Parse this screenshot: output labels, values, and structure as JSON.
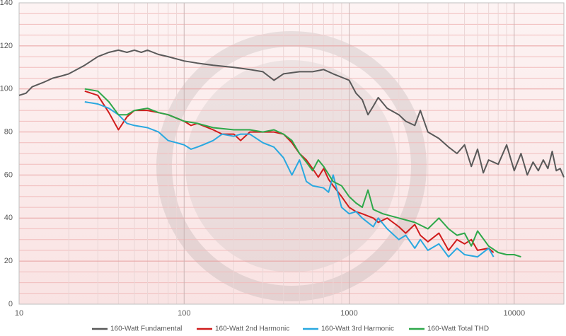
{
  "chart_data": {
    "type": "line",
    "xlim": [
      10,
      20000
    ],
    "xticks": [
      10,
      100,
      1000,
      10000
    ],
    "log_x": true,
    "ylim": [
      0,
      140
    ],
    "yticks": [
      0,
      20,
      40,
      60,
      80,
      100,
      120,
      140
    ],
    "grid": true,
    "legend": "bottom",
    "series": [
      {
        "name": "160-Watt Fundamental",
        "color": "#595959",
        "x": [
          10,
          11,
          12,
          14,
          16,
          18,
          20,
          25,
          30,
          35,
          40,
          45,
          50,
          55,
          60,
          70,
          80,
          100,
          120,
          150,
          200,
          250,
          300,
          350,
          400,
          500,
          600,
          700,
          800,
          1000,
          1100,
          1200,
          1300,
          1400,
          1500,
          1700,
          2000,
          2200,
          2500,
          2700,
          3000,
          3500,
          4000,
          4500,
          5000,
          5500,
          6000,
          6500,
          7000,
          8000,
          9000,
          10000,
          11000,
          12000,
          13000,
          14000,
          15000,
          16000,
          17000,
          18000,
          19000,
          20000
        ],
        "values": [
          97,
          98,
          101,
          103,
          105,
          106,
          107,
          111,
          115,
          117,
          118,
          117,
          118,
          117,
          118,
          116,
          115,
          113,
          112,
          111,
          110,
          109,
          108,
          104,
          107,
          108,
          108,
          109,
          107,
          104,
          98,
          95,
          88,
          92,
          96,
          91,
          88,
          85,
          83,
          90,
          80,
          77,
          73,
          70,
          74,
          64,
          72,
          61,
          67,
          65,
          74,
          62,
          70,
          60,
          66,
          62,
          67,
          63,
          71,
          62,
          63,
          59
        ]
      },
      {
        "name": "160-Watt 2nd Harmonic",
        "color": "#d01c1c",
        "x": [
          25,
          30,
          35,
          40,
          45,
          50,
          60,
          70,
          80,
          100,
          110,
          120,
          150,
          170,
          200,
          220,
          250,
          300,
          350,
          400,
          450,
          500,
          550,
          600,
          650,
          700,
          750,
          800,
          900,
          1000,
          1100,
          1200,
          1400,
          1500,
          1700,
          2000,
          2200,
          2500,
          2700,
          3000,
          3500,
          4000,
          4500,
          5000,
          5500,
          6000,
          7000,
          7500
        ],
        "values": [
          99,
          97,
          89,
          81,
          87,
          90,
          90,
          89,
          88,
          85,
          83,
          84,
          81,
          79,
          79,
          76,
          80,
          80,
          80,
          79,
          75,
          70,
          67,
          63,
          59,
          63,
          58,
          55,
          50,
          45,
          43,
          42,
          40,
          38,
          40,
          36,
          33,
          37,
          32,
          29,
          33,
          25,
          30,
          28,
          30,
          25,
          26,
          24
        ]
      },
      {
        "name": "160-Watt 3rd Harmonic",
        "color": "#29a8e0",
        "x": [
          25,
          30,
          35,
          40,
          45,
          50,
          60,
          70,
          80,
          90,
          100,
          110,
          120,
          130,
          150,
          170,
          200,
          220,
          250,
          300,
          350,
          400,
          450,
          500,
          550,
          600,
          700,
          750,
          800,
          900,
          1000,
          1100,
          1200,
          1400,
          1500,
          1700,
          2000,
          2200,
          2500,
          2700,
          3000,
          3500,
          4000,
          4500,
          5000,
          6000,
          7000,
          7500
        ],
        "values": [
          94,
          93,
          91,
          88,
          84,
          83,
          82,
          80,
          76,
          75,
          74,
          72,
          73,
          74,
          76,
          79,
          78,
          79,
          79,
          75,
          73,
          68,
          60,
          67,
          57,
          55,
          54,
          52,
          60,
          45,
          42,
          43,
          40,
          36,
          40,
          35,
          30,
          32,
          26,
          30,
          25,
          28,
          22,
          26,
          23,
          22,
          26,
          22
        ]
      },
      {
        "name": "160-Watt Total THD",
        "color": "#2ea84a",
        "x": [
          25,
          30,
          35,
          40,
          45,
          50,
          60,
          70,
          80,
          100,
          120,
          150,
          200,
          250,
          300,
          350,
          400,
          450,
          500,
          550,
          600,
          650,
          700,
          800,
          900,
          1000,
          1100,
          1200,
          1300,
          1400,
          1600,
          2000,
          2500,
          3000,
          3500,
          4000,
          4500,
          5000,
          5500,
          6000,
          7000,
          8000,
          9000,
          10000,
          11000
        ],
        "values": [
          100,
          99,
          94,
          88,
          88,
          90,
          91,
          89,
          88,
          85,
          84,
          82,
          81,
          81,
          80,
          81,
          79,
          76,
          70,
          66,
          62,
          67,
          64,
          57,
          55,
          50,
          47,
          45,
          53,
          44,
          42,
          40,
          38,
          35,
          40,
          35,
          32,
          33,
          27,
          34,
          27,
          24,
          23,
          23,
          22
        ]
      }
    ]
  }
}
